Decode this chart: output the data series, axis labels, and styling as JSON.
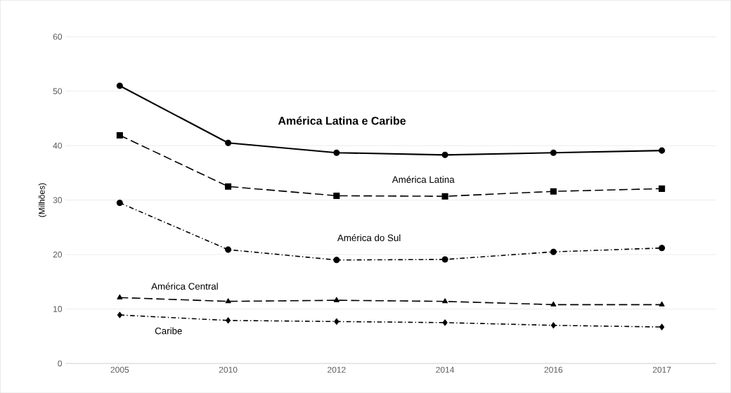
{
  "chart_data": {
    "type": "line",
    "ylabel": "(Milhões)",
    "categories": [
      "2005",
      "2010",
      "2012",
      "2014",
      "2016",
      "2017"
    ],
    "series": [
      {
        "name": "América Latina e Caribe",
        "color": "#000000",
        "marker": "circle",
        "line_style": "solid",
        "values": [
          51,
          40.5,
          38.7,
          38.3,
          38.7,
          39.1
        ]
      },
      {
        "name": "América Latina",
        "color": "#000000",
        "marker": "square",
        "line_style": "dashed",
        "values": [
          41.9,
          32.5,
          30.8,
          30.7,
          31.6,
          32.1
        ]
      },
      {
        "name": "América do Sul",
        "color": "#000000",
        "marker": "circle",
        "line_style": "dotted",
        "values": [
          29.5,
          20.9,
          19.0,
          19.1,
          20.5,
          21.2
        ]
      },
      {
        "name": "América Central",
        "color": "#000000",
        "marker": "triangle",
        "line_style": "dashed",
        "values": [
          12.1,
          11.4,
          11.6,
          11.4,
          10.8,
          10.8
        ]
      },
      {
        "name": "Caribe",
        "color": "#000000",
        "marker": "diamond",
        "line_style": "dotted",
        "values": [
          8.9,
          7.9,
          7.7,
          7.5,
          7.0,
          6.7
        ]
      }
    ],
    "ylim": [
      0,
      60
    ],
    "yticks": [
      0,
      10,
      20,
      30,
      40,
      50,
      60
    ],
    "grid": "y",
    "legend": false
  }
}
